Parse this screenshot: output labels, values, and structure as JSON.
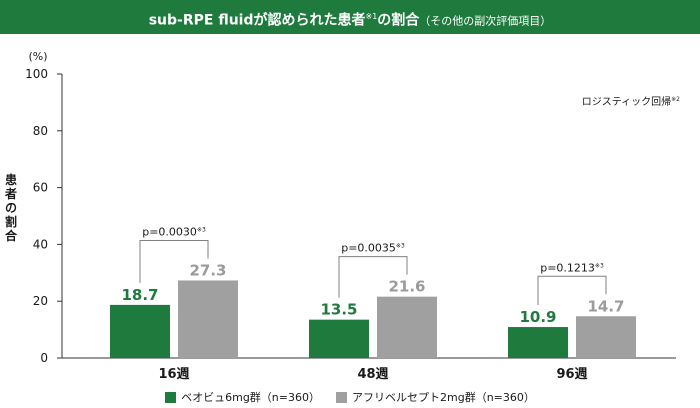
{
  "title": {
    "main": "sub-RPE fluidが認められた患者",
    "note_mark": "※1",
    "rest": "の割合",
    "sub": "（その他の副次評価項目）"
  },
  "colors": {
    "title_bg": "#1f7a3e",
    "series_1": "#1f7a3e",
    "series_2": "#a0a0a0",
    "label_1": "#1f7a3e",
    "label_2": "#9b9b9b",
    "bracket": "#808080",
    "axis": "#333333"
  },
  "chart_data": {
    "type": "bar",
    "categories": [
      "16週",
      "48週",
      "96週"
    ],
    "series": [
      {
        "name": "ベオビュ6mg群（n=360）",
        "values": [
          18.7,
          13.5,
          10.9
        ]
      },
      {
        "name": "アフリベルセプト2mg群（n=360）",
        "values": [
          27.3,
          21.6,
          14.7
        ]
      }
    ],
    "ylabel": "患者の割合",
    "y_unit": "(%)",
    "ylim": [
      0,
      100
    ],
    "yticks": [
      0,
      20,
      40,
      60,
      80,
      100
    ],
    "annotation": "ロジスティック回帰",
    "annotation_note": "※2",
    "p_values": [
      "p=0.0030",
      "p=0.0035",
      "p=0.1213"
    ],
    "p_note": "※3",
    "grid": false,
    "legend_position": "bottom"
  }
}
